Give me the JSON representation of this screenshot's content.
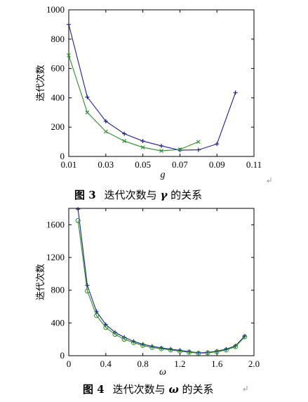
{
  "chart_data": [
    {
      "type": "line",
      "title": "",
      "xlabel": "g",
      "ylabel": "迭代次数",
      "xlim": [
        0.01,
        0.11
      ],
      "ylim": [
        0,
        1000
      ],
      "xticks": [
        "0.01",
        "0.03",
        "0.05",
        "0.07",
        "0.09",
        "0.11"
      ],
      "yticks": [
        "0",
        "200",
        "400",
        "600",
        "800",
        "1000"
      ],
      "xtick_values": [
        0.01,
        0.03,
        0.05,
        0.07,
        0.09,
        0.11
      ],
      "ytick_values": [
        0,
        200,
        400,
        600,
        800,
        1000
      ],
      "grid": false,
      "caption": {
        "label": "图 3",
        "text": "迭代次数与 ",
        "symbol": "γ",
        "suffix": " 的关系"
      },
      "series": [
        {
          "color": "#1f1f8f",
          "marker": "plus",
          "x": [
            0.01,
            0.02,
            0.03,
            0.04,
            0.05,
            0.06,
            0.07,
            0.08,
            0.09,
            0.1
          ],
          "y": [
            900,
            405,
            240,
            155,
            105,
            72,
            43,
            45,
            85,
            435
          ]
        },
        {
          "color": "#2e8b2e",
          "marker": "x",
          "x": [
            0.01,
            0.02,
            0.03,
            0.04,
            0.05,
            0.06,
            0.07,
            0.08
          ],
          "y": [
            690,
            300,
            170,
            105,
            62,
            38,
            48,
            100
          ]
        }
      ]
    },
    {
      "type": "line",
      "title": "",
      "xlabel": "ω",
      "ylabel": "迭代次数",
      "xlim": [
        0,
        2.0
      ],
      "ylim": [
        0,
        1800
      ],
      "xticks": [
        "0",
        "0.4",
        "0.8",
        "1.2",
        "1.6",
        "2.0"
      ],
      "yticks": [
        "0",
        "400",
        "800",
        "1200",
        "1600"
      ],
      "xtick_values": [
        0,
        0.4,
        0.8,
        1.2,
        1.6,
        2.0
      ],
      "ytick_values": [
        0,
        400,
        800,
        1200,
        1600
      ],
      "grid": false,
      "caption": {
        "label": "图 4",
        "text": "迭代次数与 ",
        "symbol": "ω",
        "suffix": " 的关系"
      },
      "series": [
        {
          "color": "#1f1f8f",
          "marker": "plus",
          "x": [
            0.1,
            0.2,
            0.3,
            0.4,
            0.5,
            0.6,
            0.7,
            0.8,
            0.9,
            1.0,
            1.1,
            1.2,
            1.3,
            1.4,
            1.5,
            1.6,
            1.7,
            1.8,
            1.9
          ],
          "y": [
            1790,
            860,
            540,
            380,
            285,
            225,
            175,
            140,
            115,
            95,
            80,
            65,
            50,
            35,
            40,
            55,
            80,
            120,
            240
          ]
        },
        {
          "color": "#2e8b2e",
          "marker": "circle",
          "x": [
            0.1,
            0.2,
            0.3,
            0.4,
            0.5,
            0.6,
            0.7,
            0.8,
            0.9,
            1.0,
            1.1,
            1.2,
            1.3,
            1.4,
            1.5,
            1.6,
            1.7,
            1.8,
            1.9
          ],
          "y": [
            1650,
            790,
            490,
            345,
            260,
            200,
            160,
            125,
            100,
            85,
            70,
            55,
            42,
            30,
            35,
            48,
            70,
            110,
            230
          ]
        }
      ]
    }
  ]
}
